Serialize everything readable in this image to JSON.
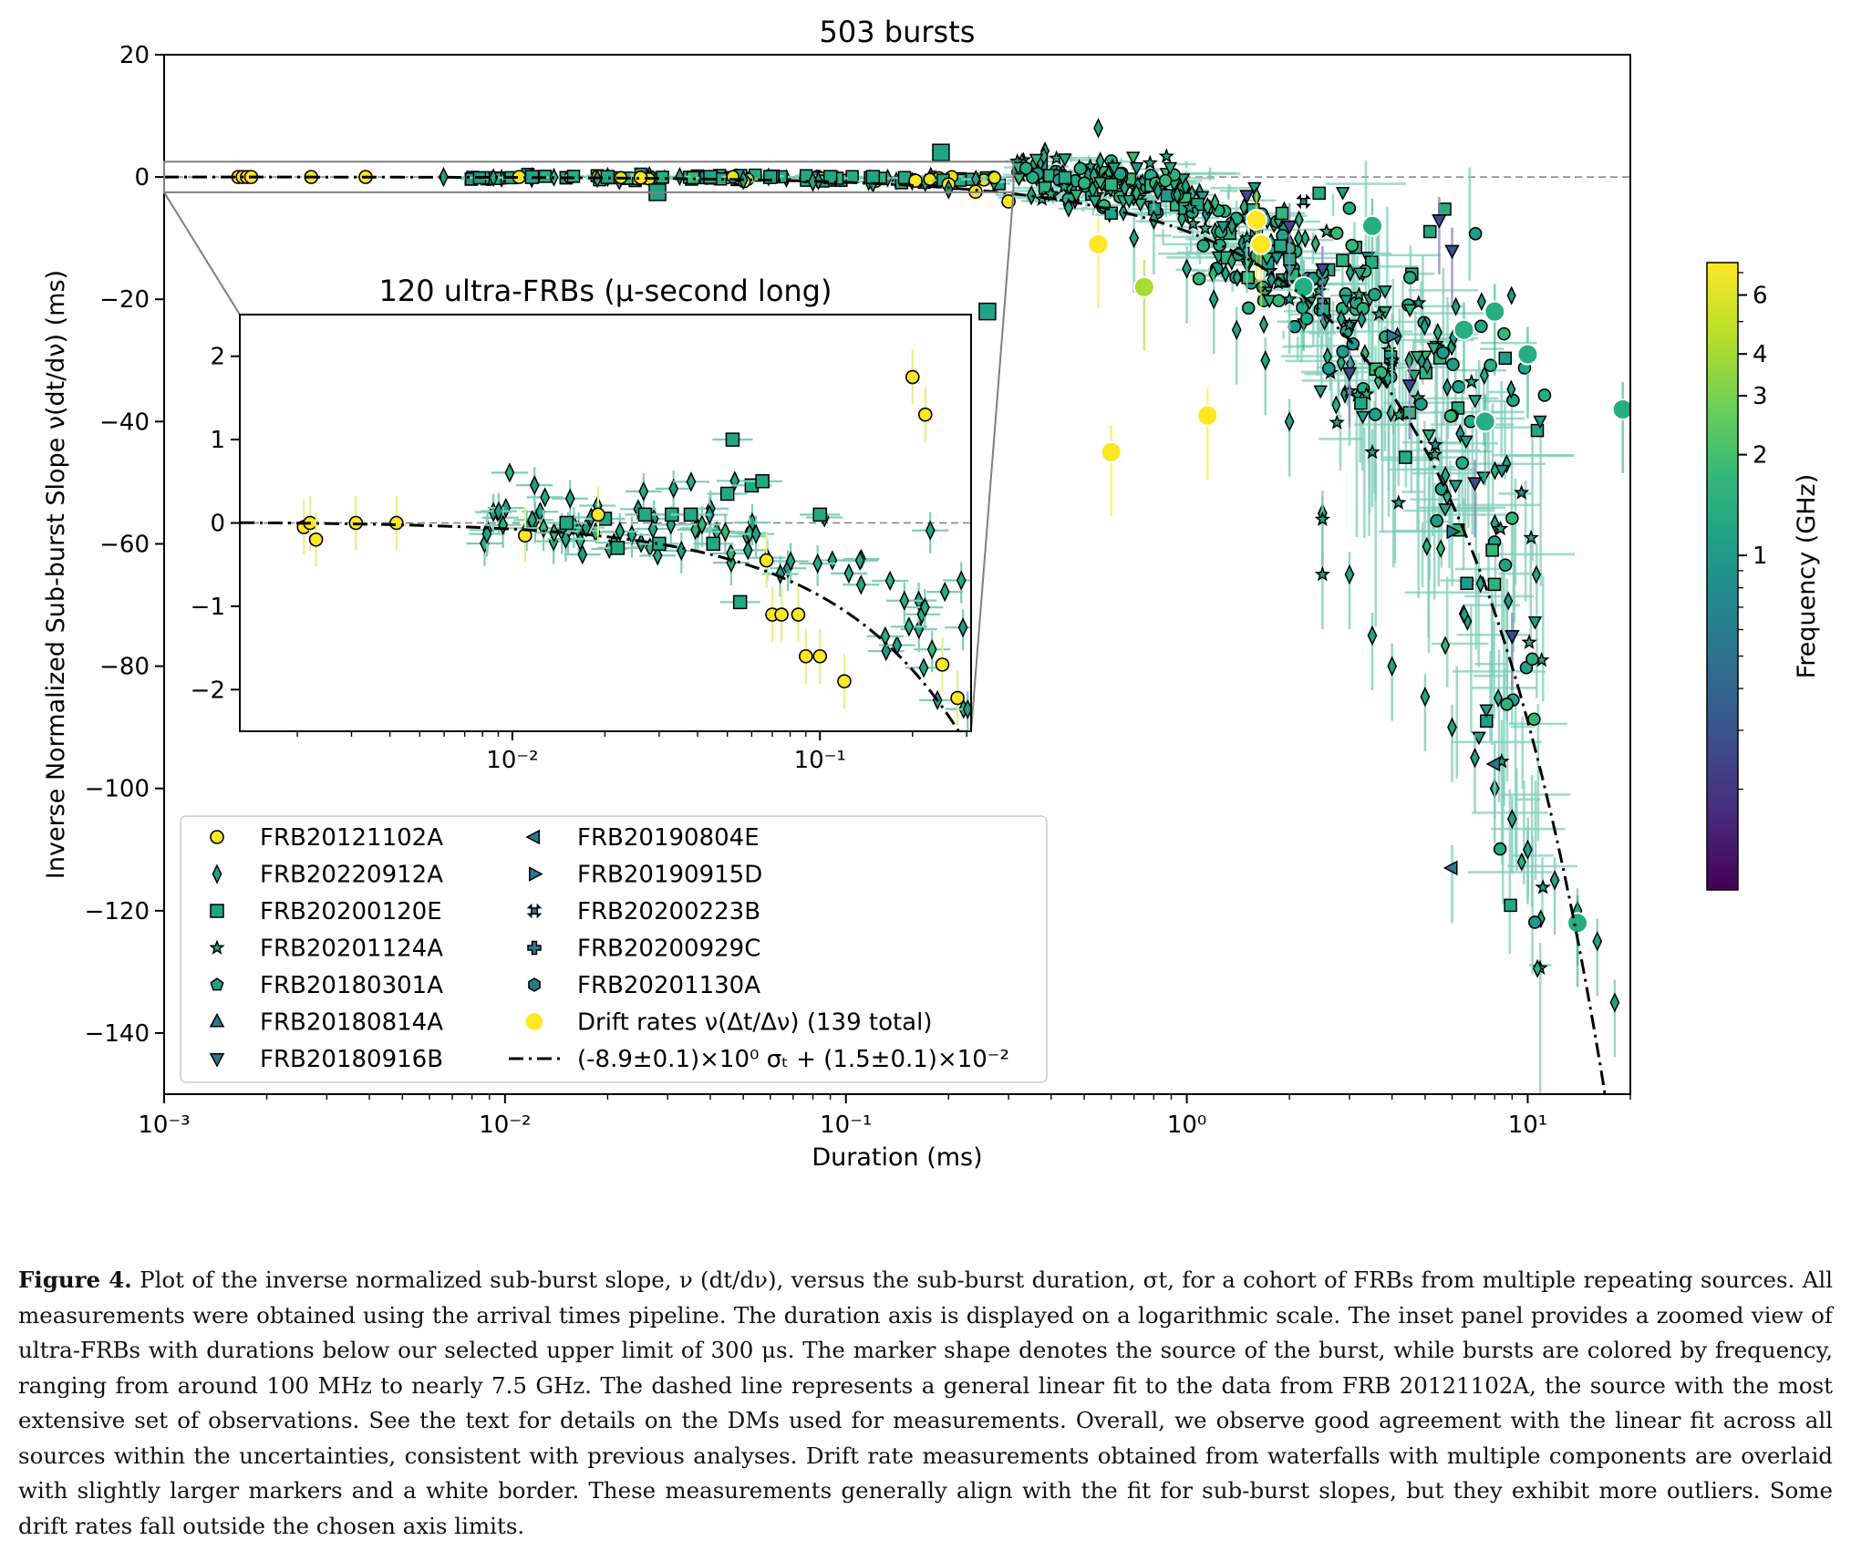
{
  "chart_data": {
    "type": "scatter",
    "title": "503 bursts",
    "xlabel": "Duration (ms)",
    "ylabel": "Inverse Normalized Sub-burst Slope ν(dt/dν) (ms)",
    "x_scale": "log",
    "xlim": [
      0.001,
      20
    ],
    "ylim": [
      -150,
      20
    ],
    "x_ticks": [
      {
        "value": 0.001,
        "label": "10⁻³"
      },
      {
        "value": 0.01,
        "label": "10⁻²"
      },
      {
        "value": 0.1,
        "label": "10⁻¹"
      },
      {
        "value": 1,
        "label": "10⁰"
      },
      {
        "value": 10,
        "label": "10¹"
      }
    ],
    "y_ticks": [
      20,
      0,
      -20,
      -40,
      -60,
      -80,
      -100,
      -120,
      -140
    ],
    "reference_line": {
      "y": 0,
      "style": "dashed"
    },
    "fit_line": {
      "label": "(-8.9±0.1)×10⁰ σₜ + (1.5±0.1)×10⁻²",
      "slope": -8.9,
      "intercept": 0.015
    },
    "colorbar": {
      "label": "Frequency (GHz)",
      "scale": "log",
      "range": [
        0.1,
        7.5
      ],
      "ticks": [
        6,
        4,
        3,
        2,
        1
      ],
      "colors": [
        "#440154",
        "#482878",
        "#3e4a89",
        "#31688e",
        "#26828e",
        "#1f9e89",
        "#35b779",
        "#6ece58",
        "#b5de2b",
        "#fde725"
      ]
    },
    "legend": {
      "placement": "lower-left",
      "entries": [
        {
          "label": "FRB20121102A",
          "marker": "circle",
          "color": "#fde725"
        },
        {
          "label": "FRB20220912A",
          "marker": "thin-diamond",
          "color": "#20a486"
        },
        {
          "label": "FRB20200120E",
          "marker": "square",
          "color": "#20a486"
        },
        {
          "label": "FRB20201124A",
          "marker": "star",
          "color": "#20a486"
        },
        {
          "label": "FRB20180301A",
          "marker": "pentagon",
          "color": "#20a486"
        },
        {
          "label": "FRB20180814A",
          "marker": "triangle-up",
          "color": "#2a788e"
        },
        {
          "label": "FRB20180916B",
          "marker": "triangle-down",
          "color": "#2a788e"
        },
        {
          "label": "FRB20190804E",
          "marker": "triangle-left",
          "color": "#2a788e"
        },
        {
          "label": "FRB20190915D",
          "marker": "triangle-right",
          "color": "#2a788e"
        },
        {
          "label": "FRB20200223B",
          "marker": "x-filled",
          "color": "#2a788e"
        },
        {
          "label": "FRB20200929C",
          "marker": "plus-filled",
          "color": "#2a788e"
        },
        {
          "label": "FRB20201130A",
          "marker": "hexagon",
          "color": "#2a788e"
        },
        {
          "label": "Drift rates ν(Δt/Δν) (139 total)",
          "marker": "large-circle",
          "color": "#fde725"
        },
        {
          "label": "(-8.9±0.1)×10⁰ σₜ + (1.5±0.1)×10⁻²",
          "marker": "dash-dot-line",
          "color": "#000000"
        }
      ]
    },
    "series": [
      {
        "name": "FRB20121102A",
        "marker": "circle",
        "color": "#fde725",
        "x": [
          0.00165,
          0.0017,
          0.00175,
          0.0018,
          0.0027,
          0.0039,
          0.011,
          0.025,
          0.16,
          0.2,
          0.24,
          0.3
        ],
        "y": [
          0,
          0,
          0,
          0,
          0,
          0,
          0,
          -0.1,
          -0.6,
          -1.2,
          -2.4,
          -4
        ]
      },
      {
        "name": "FRB20220912A",
        "marker": "thin-diamond",
        "color": "#20a486",
        "x": [
          0.0066,
          0.012,
          0.02,
          0.05,
          0.08,
          0.12,
          0.2,
          0.35,
          0.45,
          0.55,
          0.7,
          0.8,
          1.0,
          1.2,
          1.4,
          1.7,
          2.0,
          2.5,
          3.0,
          3.5,
          4.0,
          5.0,
          6.0,
          7.0,
          8.0,
          9.0,
          10.0,
          12.0,
          14.0,
          16.0,
          18.0
        ],
        "y": [
          0,
          0,
          0,
          -0.5,
          -0.8,
          -1,
          -2,
          -3,
          -5,
          8,
          -10,
          -7,
          -15,
          -20,
          -25,
          -30,
          -40,
          -55,
          -65,
          -75,
          -80,
          -85,
          -90,
          -95,
          -100,
          -105,
          -110,
          -115,
          -120,
          -125,
          -135
        ]
      },
      {
        "name": "FRB20200120E",
        "marker": "square",
        "color": "#20a486",
        "x": [
          0.012,
          0.02,
          0.028,
          0.04,
          0.06,
          0.09,
          0.12,
          0.19,
          0.26
        ],
        "y": [
          0,
          0,
          -2.5,
          0,
          0,
          0,
          0,
          4,
          -22
        ]
      },
      {
        "name": "FRB20201124A",
        "marker": "star",
        "color": "#1f9e89",
        "x": [
          1.5,
          2.0,
          2.5,
          2.5,
          3.0,
          3.5,
          4.0
        ],
        "y": [
          -10,
          -20,
          -56,
          -65,
          -35,
          -45,
          -30
        ]
      },
      {
        "name": "FRB20180916B",
        "marker": "triangle-down",
        "color": "#3e4a89",
        "x": [
          1.5,
          2.0,
          2.5,
          3.0,
          4.5,
          5.5,
          6.0,
          7.0,
          9.0
        ],
        "y": [
          -3,
          -8,
          -15,
          -32,
          -34,
          -7,
          -12,
          -50,
          -75
        ]
      },
      {
        "name": "FRB20190804E",
        "marker": "triangle-left",
        "color": "#2a788e",
        "x": [
          6.0,
          8.0
        ],
        "y": [
          -113,
          -96
        ]
      },
      {
        "name": "FRB20190915D",
        "marker": "triangle-right",
        "color": "#2a788e",
        "x": [
          4.0,
          6.0
        ],
        "y": [
          -26,
          -58
        ]
      },
      {
        "name": "FRB20200223B",
        "marker": "x-filled",
        "color": "#2a788e",
        "x": [
          2.2
        ],
        "y": [
          -4
        ]
      },
      {
        "name": "Drift rates ν(Δt/Δν) (139 total)",
        "marker": "large-circle",
        "color": "#fde725",
        "x": [
          0.55,
          0.6,
          0.75,
          1.15,
          1.6,
          1.65,
          2.2,
          3.5,
          6.5,
          7.5,
          8.0,
          10.0,
          14.0,
          19.0
        ],
        "y": [
          -11,
          -45,
          -18,
          -39,
          -7,
          -11,
          -18,
          -8,
          -25,
          -40,
          -22,
          -29,
          -122,
          -38
        ]
      }
    ]
  },
  "inset": {
    "title": "120 ultra-FRBs (μ-second long)",
    "x_scale": "log",
    "xlim": [
      0.0013,
      0.31
    ],
    "ylim": [
      -2.5,
      2.5
    ],
    "x_ticks": [
      {
        "value": 0.01,
        "label": "10⁻²"
      },
      {
        "value": 0.1,
        "label": "10⁻¹"
      }
    ],
    "y_ticks": [
      2,
      1,
      0,
      -1,
      -2
    ],
    "circles_x": [
      0.0021,
      0.0022,
      0.0023,
      0.0031,
      0.0042,
      0.011,
      0.019,
      0.067,
      0.07,
      0.075,
      0.085,
      0.09,
      0.1,
      0.12,
      0.2,
      0.22,
      0.25,
      0.28
    ],
    "circles_y": [
      -0.05,
      0,
      -0.2,
      0,
      0,
      -0.15,
      0.1,
      -0.45,
      -1.1,
      -1.1,
      -1.1,
      -1.6,
      -1.6,
      -1.9,
      1.75,
      1.3,
      -1.7,
      -2.1
    ],
    "squares_x": [
      0.015,
      0.02,
      0.022,
      0.027,
      0.03,
      0.033,
      0.038,
      0.045,
      0.05,
      0.052,
      0.055,
      0.06,
      0.065,
      0.1
    ],
    "squares_y": [
      0,
      0.05,
      -0.3,
      0.1,
      -0.25,
      0.1,
      0.1,
      -0.25,
      0.35,
      1.0,
      -0.95,
      0.45,
      0.5,
      0.1
    ]
  },
  "caption": {
    "label": "Figure 4.",
    "text": " Plot of the inverse normalized sub-burst slope, ν (dt/dν), versus the sub-burst duration, σt, for a cohort of FRBs from multiple repeating sources. All measurements were obtained using the arrival times pipeline. The duration axis is displayed on a logarithmic scale. The inset panel provides a zoomed view of ultra-FRBs with durations below our selected upper limit of 300 μs. The marker shape denotes the source of the burst, while bursts are colored by frequency, ranging from around 100 MHz to nearly 7.5 GHz. The dashed line represents a general linear fit to the data from FRB 20121102A, the source with the most extensive set of observations. See the text for details on the DMs used for measurements. Overall, we observe good agreement with the linear fit across all sources within the uncertainties, consistent with previous analyses. Drift rate measurements obtained from waterfalls with multiple components are overlaid with slightly larger markers and a white border. These measurements generally align with the fit for sub-burst slopes, but they exhibit more outliers. Some drift rates fall outside the chosen axis limits."
  }
}
